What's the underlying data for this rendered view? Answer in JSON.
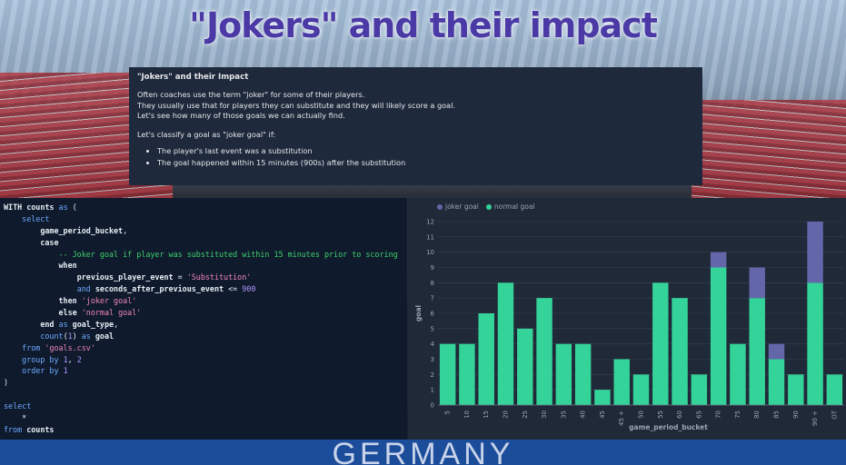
{
  "slide": {
    "title": "\"Jokers\" and their impact",
    "banner_text": "GERMANY"
  },
  "card": {
    "heading": "\"Jokers\" and their Impact",
    "lines": [
      "Often coaches use the term \"joker\" for some of their players.",
      "They usually use that for players they can substitute and they will likely score a goal.",
      "Let's see how many of those goals we can actually find."
    ],
    "classify": "Let's classify a goal as \"joker goal\" if:",
    "bullets": [
      "The player's last event was a substitution",
      "The goal happened within 15 minutes (900s) after the substitution"
    ]
  },
  "code": {
    "lines": [
      [
        [
          "id",
          "WITH"
        ],
        [
          "t",
          " "
        ],
        [
          "id",
          "counts"
        ],
        [
          "t",
          " "
        ],
        [
          "kw",
          "as"
        ],
        [
          "t",
          " ("
        ]
      ],
      [
        [
          "t",
          "    "
        ],
        [
          "kw",
          "select"
        ]
      ],
      [
        [
          "t",
          "        "
        ],
        [
          "id",
          "game_period_bucket"
        ],
        [
          "t",
          ","
        ]
      ],
      [
        [
          "t",
          "        "
        ],
        [
          "id",
          "case"
        ]
      ],
      [
        [
          "t",
          "            "
        ],
        [
          "cmt",
          "-- Joker goal if player was substituted within 15 minutes prior to scoring"
        ]
      ],
      [
        [
          "t",
          "            "
        ],
        [
          "id",
          "when"
        ]
      ],
      [
        [
          "t",
          "                "
        ],
        [
          "id",
          "previous_player_event"
        ],
        [
          "t",
          " = "
        ],
        [
          "str",
          "'Substitution'"
        ]
      ],
      [
        [
          "t",
          "                "
        ],
        [
          "kw",
          "and"
        ],
        [
          "t",
          " "
        ],
        [
          "id",
          "seconds_after_previous_event"
        ],
        [
          "t",
          " <= "
        ],
        [
          "num",
          "900"
        ]
      ],
      [
        [
          "t",
          "            "
        ],
        [
          "id",
          "then"
        ],
        [
          "t",
          " "
        ],
        [
          "str",
          "'joker goal'"
        ]
      ],
      [
        [
          "t",
          "            "
        ],
        [
          "id",
          "else"
        ],
        [
          "t",
          " "
        ],
        [
          "str",
          "'normal goal'"
        ]
      ],
      [
        [
          "t",
          "        "
        ],
        [
          "id",
          "end"
        ],
        [
          "t",
          " "
        ],
        [
          "kw",
          "as"
        ],
        [
          "t",
          " "
        ],
        [
          "id",
          "goal_type"
        ],
        [
          "t",
          ","
        ]
      ],
      [
        [
          "t",
          "        "
        ],
        [
          "kw",
          "count"
        ],
        [
          "t",
          "("
        ],
        [
          "num",
          "1"
        ],
        [
          "t",
          ") "
        ],
        [
          "kw",
          "as"
        ],
        [
          "t",
          " "
        ],
        [
          "id",
          "goal"
        ]
      ],
      [
        [
          "t",
          "    "
        ],
        [
          "kw",
          "from"
        ],
        [
          "t",
          " "
        ],
        [
          "str",
          "'goals.csv'"
        ]
      ],
      [
        [
          "t",
          "    "
        ],
        [
          "kw",
          "group by"
        ],
        [
          "t",
          " "
        ],
        [
          "num",
          "1"
        ],
        [
          "t",
          ", "
        ],
        [
          "num",
          "2"
        ]
      ],
      [
        [
          "t",
          "    "
        ],
        [
          "kw",
          "order by"
        ],
        [
          "t",
          " "
        ],
        [
          "num",
          "1"
        ]
      ],
      [
        [
          "t",
          ")"
        ]
      ],
      [
        [
          "t",
          ""
        ]
      ],
      [
        [
          "kw",
          "select"
        ]
      ],
      [
        [
          "t",
          "    *"
        ]
      ],
      [
        [
          "kw",
          "from"
        ],
        [
          "t",
          " "
        ],
        [
          "id",
          "counts"
        ]
      ]
    ]
  },
  "colors": {
    "joker": "#6366a8",
    "normal": "#34d399",
    "axis_text": "#9ca3af",
    "grid": "#374151"
  },
  "chart_data": {
    "type": "bar",
    "stacked": true,
    "categories": [
      "5",
      "10",
      "15",
      "20",
      "25",
      "30",
      "35",
      "40",
      "45",
      "45 +",
      "50",
      "55",
      "60",
      "65",
      "70",
      "75",
      "80",
      "85",
      "90",
      "90 +",
      "OT"
    ],
    "series": [
      {
        "name": "joker goal",
        "values": [
          0,
          0,
          0,
          0,
          0,
          0,
          0,
          0,
          0,
          0,
          0,
          0,
          0,
          0,
          1,
          0,
          2,
          1,
          0,
          4,
          0
        ]
      },
      {
        "name": "normal goal",
        "values": [
          4,
          4,
          6,
          8,
          5,
          7,
          4,
          4,
          1,
          3,
          2,
          8,
          7,
          2,
          9,
          4,
          7,
          3,
          2,
          8,
          2
        ]
      }
    ],
    "xlabel": "game_period_bucket",
    "ylabel": "goal",
    "ylim": [
      0,
      12
    ],
    "yticks": [
      0,
      1,
      2,
      3,
      4,
      5,
      6,
      7,
      8,
      9,
      10,
      11,
      12
    ],
    "legend": "top-left",
    "grid": true
  }
}
